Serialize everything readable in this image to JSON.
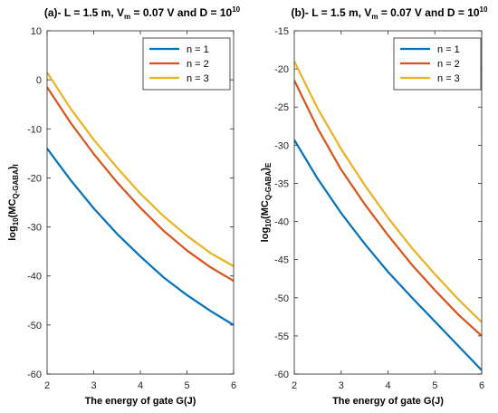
{
  "chart_data": [
    {
      "type": "line",
      "title": {
        "prefix": "(a)- L = 1.5 m, V",
        "sub": "m",
        "middle": " = 0.07 V and D = 10",
        "sup": "10"
      },
      "xlabel": "The energy of gate G(J)",
      "ylabel": {
        "pre": "log",
        "sub1": "10",
        "mid": "(MC",
        "sub2": "Q-GABA",
        "post": ")",
        "sub3": "I"
      },
      "xlim": [
        2,
        6
      ],
      "ylim": [
        -60,
        10
      ],
      "xticks": [
        2,
        3,
        4,
        5,
        6
      ],
      "yticks": [
        10,
        0,
        -10,
        -20,
        -30,
        -40,
        -50,
        -60
      ],
      "legend_position": "top-right",
      "series": [
        {
          "name": "n = 1",
          "color": "#0072BD",
          "x": [
            2,
            2.5,
            3,
            3.5,
            4,
            4.5,
            5,
            5.5,
            6
          ],
          "y": [
            -14,
            -20.4,
            -26.2,
            -31.4,
            -36,
            -40.3,
            -43.9,
            -47.1,
            -50
          ]
        },
        {
          "name": "n = 2",
          "color": "#D95319",
          "x": [
            2,
            2.5,
            3,
            3.5,
            4,
            4.5,
            5,
            5.5,
            6
          ],
          "y": [
            -1.5,
            -8.7,
            -15.1,
            -20.9,
            -26.1,
            -30.8,
            -34.8,
            -38.2,
            -41
          ]
        },
        {
          "name": "n = 3",
          "color": "#EDB120",
          "x": [
            2,
            2.5,
            3,
            3.5,
            4,
            4.5,
            5,
            5.5,
            6
          ],
          "y": [
            1.5,
            -5.8,
            -12.2,
            -17.9,
            -23.2,
            -27.8,
            -31.8,
            -35.3,
            -38
          ]
        }
      ]
    },
    {
      "type": "line",
      "title": {
        "prefix": "(b)- L = 1.5 m, V",
        "sub": "m",
        "middle": " = 0.07 V and D = 10",
        "sup": "10"
      },
      "xlabel": "The energy of gate G(J)",
      "ylabel": {
        "pre": "log",
        "sub1": "10",
        "mid": "(MC",
        "sub2": "Q-GABA",
        "post": ")",
        "sub3": "E"
      },
      "xlim": [
        2,
        6
      ],
      "ylim": [
        -60,
        -15
      ],
      "xticks": [
        2,
        3,
        4,
        5,
        6
      ],
      "yticks": [
        -15,
        -20,
        -25,
        -30,
        -35,
        -40,
        -45,
        -50,
        -55,
        -60
      ],
      "legend_position": "top-right",
      "series": [
        {
          "name": "n = 1",
          "color": "#0072BD",
          "x": [
            2,
            2.5,
            3,
            3.5,
            4,
            4.5,
            5,
            5.5,
            6
          ],
          "y": [
            -29.3,
            -34.4,
            -38.9,
            -42.9,
            -46.6,
            -49.9,
            -53.1,
            -56.3,
            -59.5
          ]
        },
        {
          "name": "n = 2",
          "color": "#D95319",
          "x": [
            2,
            2.5,
            3,
            3.5,
            4,
            4.5,
            5,
            5.5,
            6
          ],
          "y": [
            -21.5,
            -27.8,
            -33.2,
            -37.7,
            -41.8,
            -45.6,
            -49,
            -52.2,
            -55
          ]
        },
        {
          "name": "n = 3",
          "color": "#EDB120",
          "x": [
            2,
            2.5,
            3,
            3.5,
            4,
            4.5,
            5,
            5.5,
            6
          ],
          "y": [
            -19,
            -25.2,
            -30.5,
            -35.2,
            -39.5,
            -43.4,
            -46.9,
            -50.2,
            -53.2
          ]
        }
      ]
    }
  ]
}
